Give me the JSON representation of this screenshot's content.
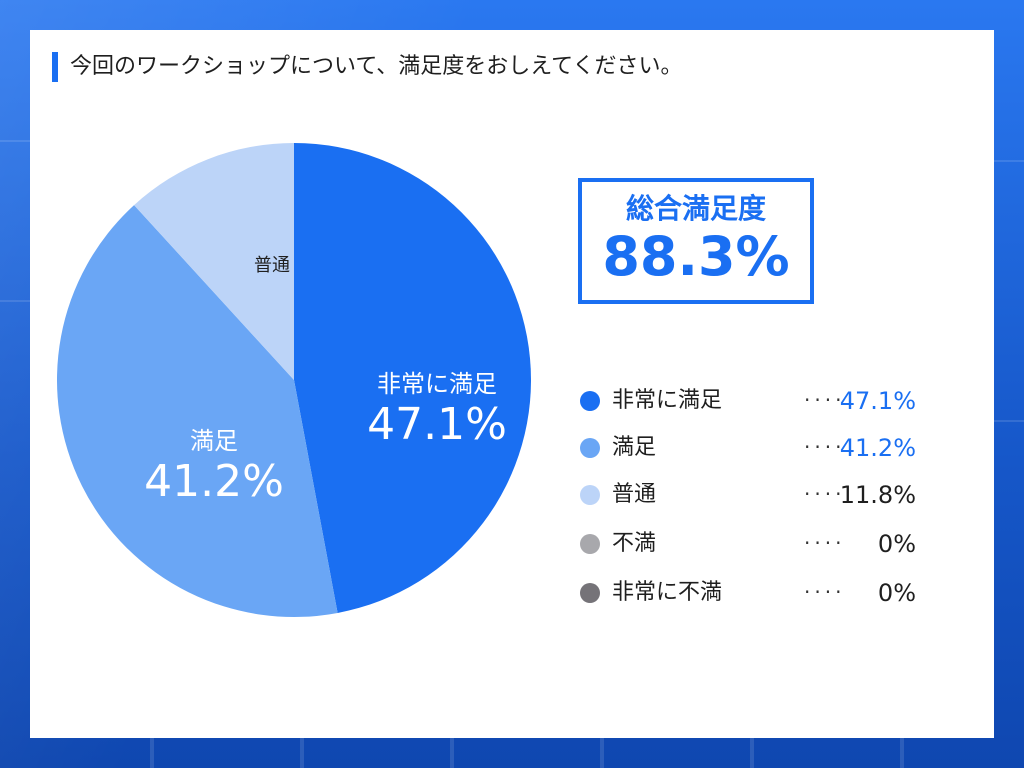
{
  "question": "今回のワークショップについて、満足度をおしえてください。",
  "summary": {
    "title": "総合満足度",
    "value": "88.3%"
  },
  "colors": {
    "accent": "#1a6ff2",
    "text": "#1f1f1f"
  },
  "legend": [
    {
      "label": "非常に満足",
      "dots": "····",
      "value": "47.1%",
      "color": "#1a6ff2",
      "value_color": "#1a6ff2"
    },
    {
      "label": "満足",
      "dots": "····",
      "value": "41.2%",
      "color": "#6aa6f5",
      "value_color": "#1a6ff2"
    },
    {
      "label": "普通",
      "dots": "····",
      "value": "11.8%",
      "color": "#bcd4f8",
      "value_color": "#1f1f1f"
    },
    {
      "label": "不満",
      "dots": "····",
      "value": "0%",
      "color": "#a8a8ac",
      "value_color": "#1f1f1f"
    },
    {
      "label": "非常に不満",
      "dots": "····",
      "value": "0%",
      "color": "#757378",
      "value_color": "#1f1f1f"
    }
  ],
  "pie_labels": [
    {
      "name": "非常に満足",
      "pct": "47.1%",
      "color": "#ffffff"
    },
    {
      "name": "満足",
      "pct": "41.2%",
      "color": "#ffffff"
    },
    {
      "name": "普通",
      "pct": "",
      "color": "#1f1f1f"
    }
  ],
  "chart_data": {
    "type": "pie",
    "categories": [
      "非常に満足",
      "満足",
      "普通",
      "不満",
      "非常に不満"
    ],
    "values": [
      47.1,
      41.2,
      11.8,
      0,
      0
    ],
    "colors": [
      "#1a6ff2",
      "#6aa6f5",
      "#bcd4f8",
      "#a8a8ac",
      "#757378"
    ],
    "unit": "%",
    "start": "12 o'clock",
    "direction": "clockwise",
    "legend_placement": "right"
  }
}
